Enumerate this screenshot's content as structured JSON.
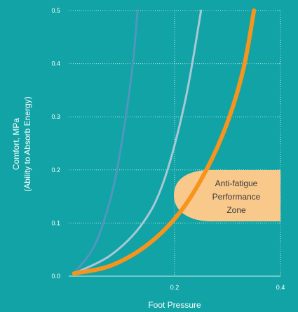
{
  "chart_data": {
    "type": "line",
    "xlabel": "Foot Pressure",
    "ylabel_lines": [
      "Comfort, MPa",
      "(Ability to Absorb Energy)"
    ],
    "xlim": [
      0,
      0.4
    ],
    "ylim": [
      0,
      0.5
    ],
    "x_ticks": [
      {
        "value": 0.2,
        "label": "0.2"
      },
      {
        "value": 0.4,
        "label": "0.4"
      }
    ],
    "y_ticks": [
      {
        "value": 0.0,
        "label": "0.0"
      },
      {
        "value": 0.1,
        "label": "0.1"
      },
      {
        "value": 0.2,
        "label": "0.2"
      },
      {
        "value": 0.3,
        "label": "0.3"
      },
      {
        "value": 0.4,
        "label": "0.4"
      },
      {
        "value": 0.5,
        "label": "0.5"
      }
    ],
    "grid": true,
    "series": [
      {
        "color": "#4f97bd",
        "x": [
          0.01,
          0.05,
          0.08,
          0.1,
          0.12,
          0.13
        ],
        "y": [
          0.005,
          0.06,
          0.15,
          0.25,
          0.39,
          0.5
        ]
      },
      {
        "color": "#a8c8d6",
        "x": [
          0.01,
          0.08,
          0.14,
          0.18,
          0.22,
          0.25
        ],
        "y": [
          0.005,
          0.04,
          0.1,
          0.18,
          0.33,
          0.5
        ]
      },
      {
        "color": "#f7941d",
        "x": [
          0.01,
          0.08,
          0.15,
          0.21,
          0.26,
          0.3,
          0.33,
          0.35
        ],
        "y": [
          0.005,
          0.02,
          0.06,
          0.12,
          0.2,
          0.29,
          0.39,
          0.5
        ]
      }
    ],
    "annotation": {
      "lines": [
        "Anti-fatigue",
        "Performance",
        "Zone"
      ],
      "fill": "#f9c98c"
    }
  }
}
